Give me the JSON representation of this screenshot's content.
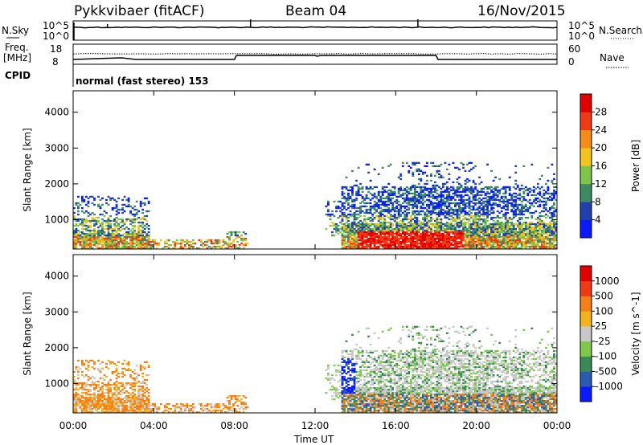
{
  "header": {
    "title": "Pykkvibaer (fitACF)",
    "beam": "Beam 04",
    "date": "16/Nov/2015"
  },
  "nsky_panel": {
    "left_label": "N.Sky",
    "left_ticks": [
      "10^5",
      "10^0"
    ],
    "right_label": "N.Search",
    "right_ticks": [
      "10^5",
      "10^0"
    ]
  },
  "freq_panel": {
    "left_label_1": "Freq.",
    "left_label_2": "[MHz]",
    "left_ticks": [
      "18",
      "8"
    ],
    "right_label": "Nave",
    "right_ticks": [
      "60",
      "0"
    ],
    "cpid_label": "CPID",
    "cpid_text": "normal (fast stereo) 153"
  },
  "chart_data": [
    {
      "type": "heatmap",
      "name": "power",
      "ylabel": "Slant Range [km]",
      "ylim": [
        180,
        4600
      ],
      "yticks": [
        "1000",
        "2000",
        "3000",
        "4000"
      ],
      "colorbar_label": "Power [dB]",
      "colorbar_ticks": [
        "4",
        "8",
        "12",
        "16",
        "20",
        "24",
        "28"
      ],
      "colorbar_colors": [
        "#0a1aff",
        "#2140b0",
        "#3e8a62",
        "#7ec64a",
        "#f2c41c",
        "#f58c18",
        "#ef3a14",
        "#e00000"
      ],
      "regions": [
        {
          "x0": 0.0,
          "x1": 3.8,
          "r0": 200,
          "r1": 1650,
          "level": "mixed_low"
        },
        {
          "x0": 0.1,
          "x1": 2.6,
          "r0": 220,
          "r1": 600,
          "level": "high"
        },
        {
          "x0": 3.8,
          "x1": 8.6,
          "r0": 200,
          "r1": 650,
          "level": "mid"
        },
        {
          "x0": 13.2,
          "x1": 20.8,
          "r0": 200,
          "r1": 2600,
          "level": "mixed_low"
        },
        {
          "x0": 14.0,
          "x1": 19.4,
          "r0": 250,
          "r1": 900,
          "level": "very_high"
        },
        {
          "x0": 13.4,
          "x1": 24.0,
          "r0": 600,
          "r1": 1900,
          "level": "mid"
        }
      ]
    },
    {
      "type": "heatmap",
      "name": "velocity",
      "ylabel": "Slant Range [km]",
      "ylim": [
        180,
        4600
      ],
      "yticks": [
        "1000",
        "2000",
        "3000",
        "4000"
      ],
      "colorbar_label": "Velocity [m s^-1]",
      "colorbar_ticks": [
        "1000",
        "500",
        "100",
        "25",
        "-25",
        "-100",
        "-500",
        "-1000"
      ],
      "colorbar_colors": [
        "#0a1aff",
        "#2a5ab4",
        "#3a8a56",
        "#7ec84a",
        "#c8c8c8",
        "#f2b41c",
        "#f58018",
        "#ef3a14",
        "#e00000"
      ],
      "regions": [
        {
          "x0": 0.0,
          "x1": 8.6,
          "r0": 200,
          "r1": 1650,
          "level": "negative_low"
        },
        {
          "x0": 13.2,
          "x1": 24.0,
          "r0": 200,
          "r1": 2600,
          "level": "mixed"
        },
        {
          "x0": 13.2,
          "x1": 13.8,
          "r0": 700,
          "r1": 1700,
          "level": "positive_high"
        }
      ]
    }
  ],
  "xaxis": {
    "label": "Time UT",
    "ticks": [
      "00:00",
      "04:00",
      "08:00",
      "12:00",
      "16:00",
      "20:00",
      "00:00"
    ],
    "xlim": [
      0,
      24
    ]
  }
}
